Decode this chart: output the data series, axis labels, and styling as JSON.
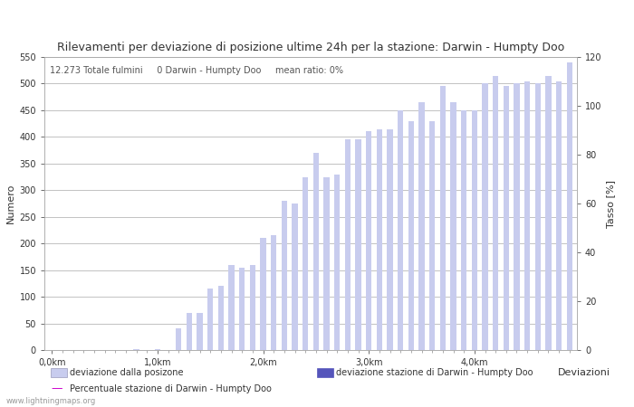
{
  "title": "Rilevamenti per deviazione di posizione ultime 24h per la stazione: Darwin - Humpty Doo",
  "subtitle": "12.273 Totale fulmini     0 Darwin - Humpty Doo     mean ratio: 0%",
  "ylabel_left": "Numero",
  "ylabel_right": "Tasso [%]",
  "watermark": "www.lightningmaps.org",
  "legend_label1": "deviazione dalla posizone",
  "legend_label2": "deviazione stazione di Darwin - Humpty Doo",
  "legend_label3": "Percentuale stazione di Darwin - Humpty Doo",
  "legend_extra": "Deviazioni",
  "bar_color_light": "#c8ccee",
  "bar_color_dark": "#5555bb",
  "line_color": "#cc00cc",
  "bg_color": "#ffffff",
  "grid_color": "#aaaaaa",
  "ylim_left": [
    0,
    550
  ],
  "ylim_right": [
    0,
    120
  ],
  "yticks_left": [
    0,
    50,
    100,
    150,
    200,
    250,
    300,
    350,
    400,
    450,
    500,
    550
  ],
  "yticks_right": [
    0,
    20,
    40,
    60,
    80,
    100,
    120
  ],
  "x_tick_labels": [
    "0,0km",
    "1,0km",
    "2,0km",
    "3,0km",
    "4,0km"
  ],
  "x_tick_positions": [
    0,
    10,
    20,
    30,
    40
  ],
  "bar_values": [
    0,
    0,
    0,
    0,
    0,
    0,
    0,
    0,
    1,
    0,
    2,
    0,
    40,
    70,
    70,
    115,
    120,
    160,
    155,
    160,
    210,
    215,
    280,
    275,
    325,
    370,
    325,
    330,
    395,
    395,
    410,
    415,
    415,
    450,
    430,
    465,
    430,
    495,
    465,
    450,
    450,
    500,
    515,
    495,
    500,
    505,
    500,
    515,
    505,
    540
  ],
  "n_bars": 50,
  "bar_width": 0.55,
  "title_fontsize": 9,
  "tick_fontsize": 7,
  "label_fontsize": 8,
  "legend_fontsize": 7
}
